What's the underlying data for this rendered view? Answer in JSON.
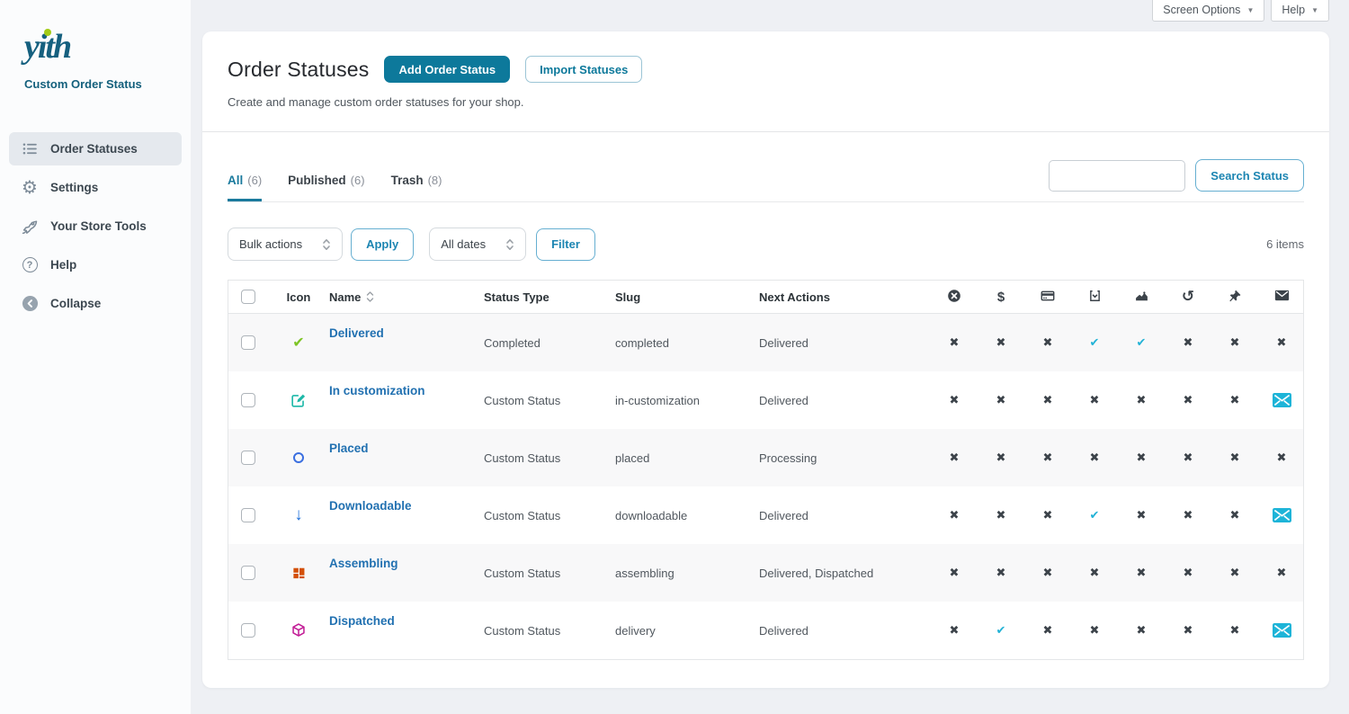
{
  "topbar": {
    "screen_options": "Screen Options",
    "help": "Help"
  },
  "sidebar": {
    "logo_text": "yith",
    "brand_title": "Custom Order Status",
    "items": [
      {
        "label": "Order Statuses",
        "icon": "list-icon",
        "active": true
      },
      {
        "label": "Settings",
        "icon": "gear-icon",
        "active": false
      },
      {
        "label": "Your Store Tools",
        "icon": "rocket-icon",
        "active": false
      },
      {
        "label": "Help",
        "icon": "question-icon",
        "active": false
      },
      {
        "label": "Collapse",
        "icon": "collapse-icon",
        "active": false
      }
    ]
  },
  "header": {
    "title": "Order Statuses",
    "add_button": "Add Order Status",
    "import_button": "Import Statuses",
    "subtitle": "Create and manage custom order statuses for your shop."
  },
  "tabs": [
    {
      "label": "All",
      "count": "(6)",
      "active": true
    },
    {
      "label": "Published",
      "count": "(6)",
      "active": false
    },
    {
      "label": "Trash",
      "count": "(8)",
      "active": false
    }
  ],
  "search": {
    "value": "",
    "button_label": "Search Status"
  },
  "toolbar": {
    "bulk_actions": "Bulk actions",
    "apply": "Apply",
    "all_dates": "All dates",
    "filter": "Filter",
    "items_count": "6 items"
  },
  "table": {
    "columns": {
      "icon": "Icon",
      "name": "Name",
      "status_type": "Status Type",
      "slug": "Slug",
      "next_actions": "Next Actions"
    },
    "icon_columns": [
      "dismiss-icon",
      "dollar-icon",
      "credit-card-icon",
      "download-icon",
      "chart-icon",
      "undo-icon",
      "pin-icon",
      "email-icon"
    ],
    "rows": [
      {
        "icon": "check-icon",
        "name": "Delivered",
        "status_type": "Completed",
        "slug": "completed",
        "next_actions": "Delivered",
        "flags": [
          "no",
          "no",
          "no",
          "yes",
          "yes",
          "no",
          "no",
          "no"
        ]
      },
      {
        "icon": "edit-icon",
        "name": "In customization",
        "status_type": "Custom Status",
        "slug": "in-customization",
        "next_actions": "Delivered",
        "flags": [
          "no",
          "no",
          "no",
          "no",
          "no",
          "no",
          "no",
          "mail"
        ]
      },
      {
        "icon": "circle-icon",
        "name": "Placed",
        "status_type": "Custom Status",
        "slug": "placed",
        "next_actions": "Processing",
        "flags": [
          "no",
          "no",
          "no",
          "no",
          "no",
          "no",
          "no",
          "no"
        ]
      },
      {
        "icon": "arrow-down-icon",
        "name": "Downloadable",
        "status_type": "Custom Status",
        "slug": "downloadable",
        "next_actions": "Delivered",
        "flags": [
          "no",
          "no",
          "no",
          "yes",
          "no",
          "no",
          "no",
          "mail"
        ]
      },
      {
        "icon": "bricks-icon",
        "name": "Assembling",
        "status_type": "Custom Status",
        "slug": "assembling",
        "next_actions": "Delivered, Dispatched",
        "flags": [
          "no",
          "no",
          "no",
          "no",
          "no",
          "no",
          "no",
          "no"
        ]
      },
      {
        "icon": "cube-icon",
        "name": "Dispatched",
        "status_type": "Custom Status",
        "slug": "delivery",
        "next_actions": "Delivered",
        "flags": [
          "no",
          "yes",
          "no",
          "no",
          "no",
          "no",
          "no",
          "mail"
        ]
      }
    ]
  },
  "colors": {
    "accent": "#0d799b",
    "link": "#2271b1",
    "tab_active": "#1a7a9d",
    "check_cyan": "#22b2d6",
    "cross": "#3c434a",
    "green": "#7dc425",
    "teal_icon": "#1db8a8",
    "blue_icon": "#3b6fe0",
    "orange": "#d35008",
    "magenta": "#c21d96",
    "ghost_border": "#66afd1",
    "ghost_text": "#1c85b2"
  }
}
